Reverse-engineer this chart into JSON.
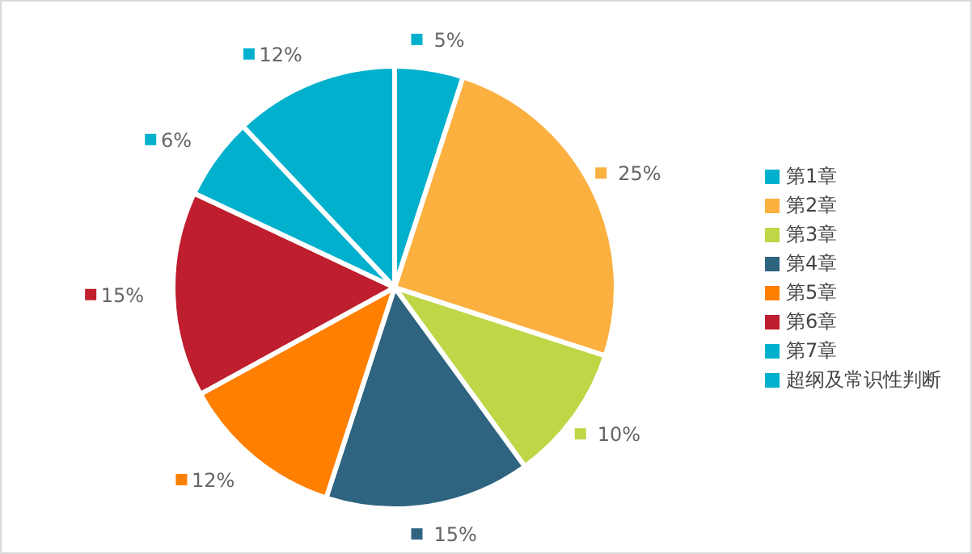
{
  "chart_data": {
    "type": "pie",
    "categories": [
      "第1章",
      "第2章",
      "第3章",
      "第4章",
      "第5章",
      "第6章",
      "第7章",
      "超纲及常识性判断"
    ],
    "values": [
      5,
      25,
      10,
      15,
      12,
      15,
      6,
      12
    ],
    "value_labels": [
      "5%",
      "25%",
      "10%",
      "15%",
      "12%",
      "15%",
      "6%",
      "12%"
    ],
    "colors": [
      "#00b0cc",
      "#fbb040",
      "#bfd646",
      "#2f6480",
      "#ff7f00",
      "#be1e2d",
      "#00b0cc",
      "#00b0cc"
    ],
    "legend": "right"
  }
}
